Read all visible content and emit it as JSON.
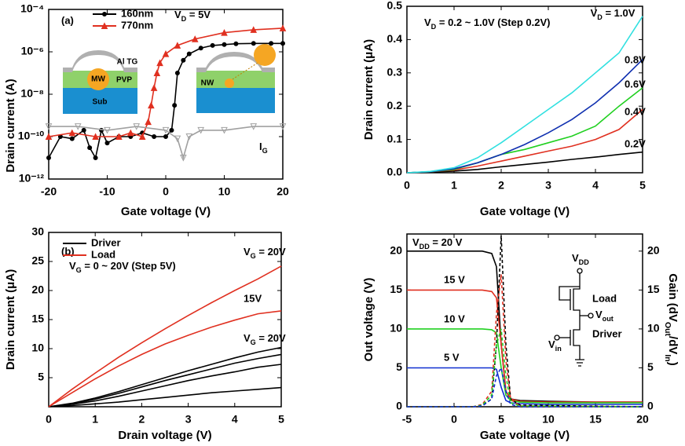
{
  "chart_data": [
    {
      "type": "line",
      "x_label": "Gate voltage (V)",
      "y_label": "Drain current (A)",
      "xlim": [
        -20,
        20
      ],
      "xticks": [
        -20,
        -10,
        0,
        10,
        20
      ],
      "ylim": [
        1e-12,
        0.0001
      ],
      "log_y": true,
      "grid": false,
      "yticks": [
        {
          "value": 1e-12,
          "label": "10⁻¹²"
        },
        {
          "value": 1e-10,
          "label": "10⁻¹⁰"
        },
        {
          "value": 1e-08,
          "label": "10⁻⁸"
        },
        {
          "value": 1e-06,
          "label": "10⁻⁶"
        },
        {
          "value": 0.0001,
          "label": "10⁻⁴"
        }
      ],
      "annotations": [
        "(a)",
        [
          {
            "t": "V"
          },
          {
            "t": "D",
            "s": "sub"
          },
          {
            "t": " = 5V"
          }
        ],
        [
          {
            "t": "I"
          },
          {
            "t": "G",
            "s": "sub"
          }
        ]
      ],
      "inset_labels": [
        "Al TG",
        "MW",
        "PVP",
        "Sub",
        "NW"
      ],
      "series": [
        {
          "name": "160nm",
          "color": "#000000",
          "marker": "circle",
          "x": [
            -20,
            -18,
            -16,
            -14,
            -13,
            -12,
            -11,
            -10,
            -8,
            -6,
            -4,
            -2,
            0,
            1,
            1.5,
            2,
            3,
            4,
            6,
            8,
            10,
            12,
            15,
            18,
            20
          ],
          "values": [
            1e-11,
            1e-10,
            8e-11,
            2e-10,
            3e-11,
            1e-11,
            2e-10,
            5e-11,
            1e-10,
            1e-10,
            1.5e-10,
            1e-10,
            1e-10,
            2e-10,
            3e-09,
            1e-07,
            4e-07,
            8e-07,
            1.5e-06,
            2e-06,
            2.2e-06,
            2.4e-06,
            2.5e-06,
            2.5e-06,
            2.5e-06
          ]
        },
        {
          "name": "770nm",
          "color": "#e03020",
          "marker": "triangle",
          "x": [
            -20,
            -16,
            -12,
            -8,
            -6,
            -4,
            -3,
            -2.5,
            -2,
            -1.5,
            -1,
            0,
            2,
            5,
            10,
            15,
            20
          ],
          "values": [
            1e-10,
            1.5e-10,
            1e-10,
            1e-10,
            1.5e-10,
            1e-10,
            5e-10,
            3e-09,
            2e-08,
            1e-07,
            3e-07,
            8e-07,
            2e-06,
            4e-06,
            8e-06,
            1.1e-05,
            1.3e-05
          ]
        },
        {
          "color": "#a0a0a0",
          "marker": "triangle-down",
          "x": [
            -20,
            -15,
            -10,
            -5,
            0,
            2,
            3,
            4,
            6,
            10,
            15,
            20
          ],
          "values": [
            3e-10,
            3e-10,
            2e-10,
            3e-10,
            2e-10,
            8e-11,
            1e-11,
            1e-10,
            2e-10,
            2e-10,
            3e-10,
            3e-10
          ]
        }
      ]
    },
    {
      "type": "line",
      "x_label": "Gate voltage (V)",
      "y_label": "Drain current (μA)",
      "xlim": [
        0,
        5
      ],
      "xticks": [
        0,
        1,
        2,
        3,
        4,
        5
      ],
      "ylim": [
        0,
        0.5
      ],
      "yticks": [
        {
          "value": 0,
          "label": "0.0"
        },
        0.1,
        0.2,
        0.3,
        0.4,
        0.5
      ],
      "grid": false,
      "annotations": [
        [
          {
            "t": "V"
          },
          {
            "t": "D",
            "s": "sub"
          },
          {
            "t": " = 0.2 ~ 1.0V (Step 0.2V)"
          }
        ]
      ],
      "x": [
        0,
        0.5,
        1,
        1.5,
        2,
        2.5,
        3,
        3.5,
        4,
        4.5,
        5
      ],
      "series": [
        {
          "name": "0.2V",
          "color": "#000000",
          "values": [
            0,
            0.002,
            0.005,
            0.01,
            0.018,
            0.025,
            0.032,
            0.04,
            0.047,
            0.055,
            0.062
          ]
        },
        {
          "name": "0.4V",
          "color": "#e03020",
          "values": [
            0,
            0.003,
            0.008,
            0.02,
            0.035,
            0.05,
            0.065,
            0.08,
            0.1,
            0.13,
            0.19
          ]
        },
        {
          "name": "0.6V",
          "color": "#20d020",
          "values": [
            0,
            0.003,
            0.01,
            0.03,
            0.055,
            0.07,
            0.09,
            0.11,
            0.14,
            0.2,
            0.255
          ]
        },
        {
          "name": "0.8V",
          "color": "#1030b0",
          "values": [
            0,
            0.003,
            0.012,
            0.03,
            0.055,
            0.085,
            0.12,
            0.16,
            0.21,
            0.27,
            0.34
          ]
        },
        {
          "name": [
            {
              "t": "V"
            },
            {
              "t": "D",
              "s": "sub"
            },
            {
              "t": " = 1.0V"
            }
          ],
          "color": "#30e0e0",
          "values": [
            0,
            0.004,
            0.015,
            0.045,
            0.09,
            0.14,
            0.19,
            0.24,
            0.3,
            0.36,
            0.47
          ]
        }
      ]
    },
    {
      "type": "line",
      "x_label": "Drain voltage (V)",
      "y_label": "Drain current (μA)",
      "xlim": [
        0,
        5
      ],
      "xticks": [
        0,
        1,
        2,
        3,
        4,
        5
      ],
      "ylim": [
        0,
        30
      ],
      "yticks": [
        5,
        10,
        15,
        20,
        25,
        30
      ],
      "grid": false,
      "annotations": [
        "(b)",
        [
          {
            "t": "V"
          },
          {
            "t": "G",
            "s": "sub"
          },
          {
            "t": " = 0 ~ 20V (Step 5V)"
          }
        ],
        [
          {
            "t": "V"
          },
          {
            "t": "G",
            "s": "sub"
          },
          {
            "t": " = 20V"
          }
        ],
        "15V",
        [
          {
            "t": "V"
          },
          {
            "t": "G",
            "s": "sub"
          },
          {
            "t": " = 20V"
          }
        ]
      ],
      "x": [
        0,
        0.5,
        1,
        1.5,
        2,
        2.5,
        3,
        3.5,
        4,
        4.5,
        5
      ],
      "series": [
        {
          "name": "Driver",
          "color": "#000000",
          "curves": [
            [
              0,
              0.6,
              1.5,
              2.6,
              3.8,
              5,
              6.2,
              7.3,
              8.4,
              9.4,
              10.2
            ],
            [
              0,
              0.5,
              1.3,
              2.3,
              3.4,
              4.5,
              5.5,
              6.5,
              7.5,
              8.3,
              9
            ],
            [
              0,
              0.4,
              1,
              1.8,
              2.7,
              3.6,
              4.5,
              5.3,
              6,
              6.8,
              7.3
            ],
            [
              0,
              0.2,
              0.5,
              0.8,
              1.2,
              1.6,
              2,
              2.4,
              2.7,
              3,
              3.3
            ]
          ]
        },
        {
          "name": "Load",
          "color": "#e03020",
          "curves": [
            [
              0,
              3,
              5.8,
              8.5,
              11,
              13.4,
              15.7,
              17.9,
              20,
              22,
              24.2
            ],
            [
              0,
              2.4,
              4.8,
              7,
              9,
              10.8,
              12.3,
              13.7,
              14.9,
              16,
              16.5
            ]
          ]
        }
      ]
    },
    {
      "type": "line",
      "x_label": "Gate voltage (V)",
      "y_label": "Out voltage (V)",
      "y2_label": [
        {
          "t": "Gain (dV"
        },
        {
          "t": "Out",
          "s": "sub"
        },
        {
          "t": "/dV"
        },
        {
          "t": "In",
          "s": "sub"
        },
        {
          "t": ")"
        }
      ],
      "xlim": [
        -5,
        20
      ],
      "xticks": [
        -5,
        0,
        5,
        10,
        15,
        20
      ],
      "ylim": [
        0,
        22.2
      ],
      "yticks": [
        0,
        5,
        10,
        15,
        20
      ],
      "y2lim": [
        0,
        22.2
      ],
      "y2ticks": [
        0,
        5,
        10,
        15,
        20
      ],
      "grid": false,
      "circuit_labels": [
        [
          {
            "t": "V"
          },
          {
            "t": "DD",
            "s": "sub"
          }
        ],
        "Load",
        [
          {
            "t": "V"
          },
          {
            "t": "out",
            "s": "sub"
          }
        ],
        [
          {
            "t": "V"
          },
          {
            "t": "in",
            "s": "sub"
          }
        ],
        "Driver"
      ],
      "series": [
        {
          "name": [
            {
              "t": "V"
            },
            {
              "t": "DD",
              "s": "sub"
            },
            {
              "t": " = 20 V"
            }
          ],
          "color": "#000000",
          "x": [
            -5,
            0,
            3,
            4,
            4.5,
            5,
            5.5,
            6,
            7,
            10,
            15,
            20
          ],
          "values": [
            20,
            20,
            20,
            19.7,
            18,
            8,
            2,
            1,
            0.8,
            0.7,
            0.6,
            0.6
          ]
        },
        {
          "name": "15 V",
          "color": "#e03020",
          "x": [
            -5,
            0,
            3,
            4,
            4.5,
            5,
            5.5,
            6,
            7,
            10,
            15,
            20
          ],
          "values": [
            15,
            15,
            15,
            14.8,
            14,
            8,
            2,
            1,
            0.7,
            0.6,
            0.6,
            0.6
          ]
        },
        {
          "name": "10 V",
          "color": "#20d020",
          "x": [
            -5,
            0,
            3,
            4,
            4.5,
            5,
            5.5,
            6,
            7,
            10,
            15,
            20
          ],
          "values": [
            10,
            10,
            10,
            9.9,
            9.5,
            5,
            1.5,
            0.8,
            0.6,
            0.5,
            0.5,
            0.5
          ]
        },
        {
          "name": "5 V",
          "color": "#1030d0",
          "x": [
            -5,
            0,
            3,
            4,
            4.5,
            5,
            5.5,
            6,
            7,
            10,
            15,
            20
          ],
          "values": [
            5,
            5,
            5,
            5,
            4.8,
            2.5,
            0.8,
            0.5,
            0.4,
            0.3,
            0.3,
            0.3
          ]
        },
        {
          "color": "#000000",
          "axis": "y2",
          "dashed": true,
          "x": [
            -5,
            2,
            3,
            4,
            4.5,
            5,
            5.5,
            6,
            7,
            20
          ],
          "values": [
            0,
            0,
            0.2,
            1,
            8,
            22,
            8,
            1,
            0.2,
            0
          ]
        },
        {
          "color": "#e03020",
          "axis": "y2",
          "dashed": true,
          "x": [
            -5,
            2,
            3,
            4,
            4.5,
            5,
            5.5,
            6,
            7,
            20
          ],
          "values": [
            0,
            0,
            0.3,
            2,
            12,
            17,
            6,
            1,
            0.1,
            0
          ]
        },
        {
          "color": "#20d020",
          "axis": "y2",
          "dashed": true,
          "x": [
            -5,
            2,
            3,
            4,
            4.5,
            5,
            5.5,
            6,
            7,
            20
          ],
          "values": [
            0,
            0,
            0.2,
            1.5,
            8,
            10,
            4,
            0.5,
            0.1,
            0
          ]
        },
        {
          "color": "#1030d0",
          "axis": "y2",
          "dashed": true,
          "x": [
            -5,
            2,
            3,
            4,
            4.5,
            5,
            5.5,
            6,
            7,
            20
          ],
          "values": [
            0,
            0,
            0.1,
            1,
            4,
            5,
            2,
            0.3,
            0,
            0
          ]
        }
      ]
    }
  ]
}
